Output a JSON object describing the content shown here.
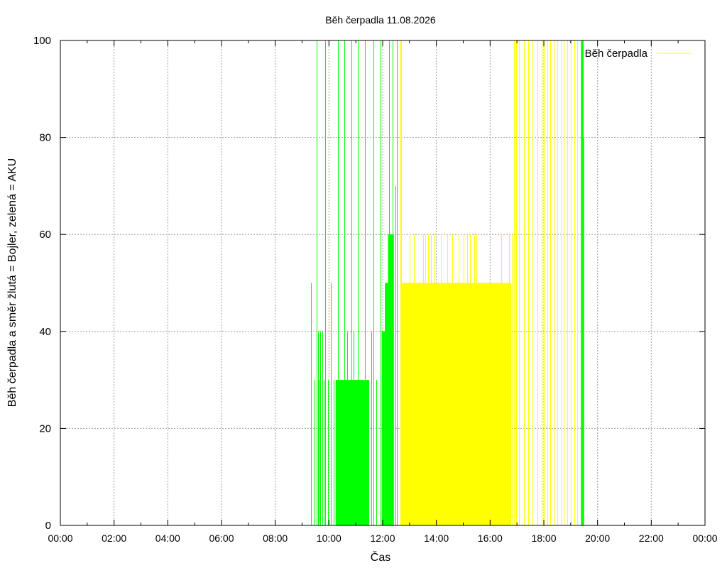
{
  "chart_data": {
    "type": "bar",
    "title": "Běh čerpadla 11.08.2026",
    "xlabel": "Čas",
    "ylabel": "Běh čerpadla a směr žlutá = Bojler, zelená = AKU",
    "xlim": [
      "00:00",
      "24:00"
    ],
    "ylim": [
      0,
      100
    ],
    "grid": true,
    "legend_position": "top-right",
    "x_ticks": [
      "00:00",
      "02:00",
      "04:00",
      "06:00",
      "08:00",
      "10:00",
      "12:00",
      "14:00",
      "16:00",
      "18:00",
      "20:00",
      "22:00",
      "00:00"
    ],
    "y_ticks": [
      0,
      20,
      40,
      60,
      80,
      100
    ],
    "series": [
      {
        "name": "Běh čerpadla",
        "color": "#ffff00",
        "in_legend": true,
        "solid_blocks": [
          {
            "start": "12:40",
            "end": "16:47",
            "value": 50
          }
        ],
        "spikes": [
          {
            "t": "12:39",
            "v": 100
          },
          {
            "t": "12:41",
            "v": 100
          },
          {
            "t": "13:00",
            "v": 60
          },
          {
            "t": "13:10",
            "v": 60
          },
          {
            "t": "13:30",
            "v": 60
          },
          {
            "t": "13:35",
            "v": 60
          },
          {
            "t": "13:42",
            "v": 60
          },
          {
            "t": "13:48",
            "v": 60
          },
          {
            "t": "13:55",
            "v": 60
          },
          {
            "t": "14:10",
            "v": 60
          },
          {
            "t": "14:25",
            "v": 60
          },
          {
            "t": "14:35",
            "v": 60
          },
          {
            "t": "14:50",
            "v": 60
          },
          {
            "t": "15:00",
            "v": 60
          },
          {
            "t": "15:08",
            "v": 60
          },
          {
            "t": "15:15",
            "v": 60
          },
          {
            "t": "15:25",
            "v": 60
          },
          {
            "t": "15:30",
            "v": 60
          },
          {
            "t": "16:25",
            "v": 60
          },
          {
            "t": "16:42",
            "v": 60
          },
          {
            "t": "16:48",
            "v": 60
          },
          {
            "t": "16:53",
            "v": 100
          },
          {
            "t": "16:58",
            "v": 100
          },
          {
            "t": "17:05",
            "v": 100
          },
          {
            "t": "17:15",
            "v": 100
          },
          {
            "t": "17:25",
            "v": 100
          },
          {
            "t": "17:35",
            "v": 100
          },
          {
            "t": "17:45",
            "v": 100
          },
          {
            "t": "17:55",
            "v": 100
          },
          {
            "t": "18:00",
            "v": 100
          },
          {
            "t": "18:08",
            "v": 100
          },
          {
            "t": "18:15",
            "v": 100
          },
          {
            "t": "18:22",
            "v": 100
          },
          {
            "t": "18:30",
            "v": 100
          },
          {
            "t": "18:38",
            "v": 100
          },
          {
            "t": "18:45",
            "v": 100
          },
          {
            "t": "18:52",
            "v": 100
          },
          {
            "t": "19:00",
            "v": 100
          },
          {
            "t": "19:08",
            "v": 100
          },
          {
            "t": "19:15",
            "v": 100
          }
        ]
      },
      {
        "color": "#00ff00",
        "in_legend": false,
        "solid_blocks": [
          {
            "start": "10:15",
            "end": "11:30",
            "value": 30
          },
          {
            "start": "11:58",
            "end": "12:05",
            "value": 40
          },
          {
            "start": "12:05",
            "end": "12:12",
            "value": 50
          },
          {
            "start": "12:12",
            "end": "12:25",
            "value": 60
          },
          {
            "start": "19:23",
            "end": "19:27",
            "value": 100
          },
          {
            "start": "19:27",
            "end": "19:30",
            "value": 80
          }
        ],
        "spikes": [
          {
            "t": "09:20",
            "v": 50
          },
          {
            "t": "09:28",
            "v": 30
          },
          {
            "t": "09:33",
            "v": 100
          },
          {
            "t": "09:35",
            "v": 40
          },
          {
            "t": "09:38",
            "v": 30
          },
          {
            "t": "09:40",
            "v": 40
          },
          {
            "t": "09:45",
            "v": 40
          },
          {
            "t": "09:48",
            "v": 30
          },
          {
            "t": "09:52",
            "v": 100
          },
          {
            "t": "09:58",
            "v": 30
          },
          {
            "t": "10:05",
            "v": 50
          },
          {
            "t": "10:10",
            "v": 30
          },
          {
            "t": "10:20",
            "v": 100
          },
          {
            "t": "10:35",
            "v": 100
          },
          {
            "t": "10:40",
            "v": 40
          },
          {
            "t": "10:50",
            "v": 100
          },
          {
            "t": "10:55",
            "v": 40
          },
          {
            "t": "11:05",
            "v": 100
          },
          {
            "t": "11:20",
            "v": 100
          },
          {
            "t": "11:35",
            "v": 40
          },
          {
            "t": "11:40",
            "v": 100
          },
          {
            "t": "11:45",
            "v": 30
          },
          {
            "t": "11:55",
            "v": 100
          },
          {
            "t": "12:02",
            "v": 40
          },
          {
            "t": "12:08",
            "v": 50
          },
          {
            "t": "12:15",
            "v": 100
          },
          {
            "t": "12:22",
            "v": 100
          },
          {
            "t": "12:28",
            "v": 70
          },
          {
            "t": "12:32",
            "v": 100
          },
          {
            "t": "19:25",
            "v": 100
          },
          {
            "t": "19:28",
            "v": 100
          }
        ]
      }
    ]
  }
}
